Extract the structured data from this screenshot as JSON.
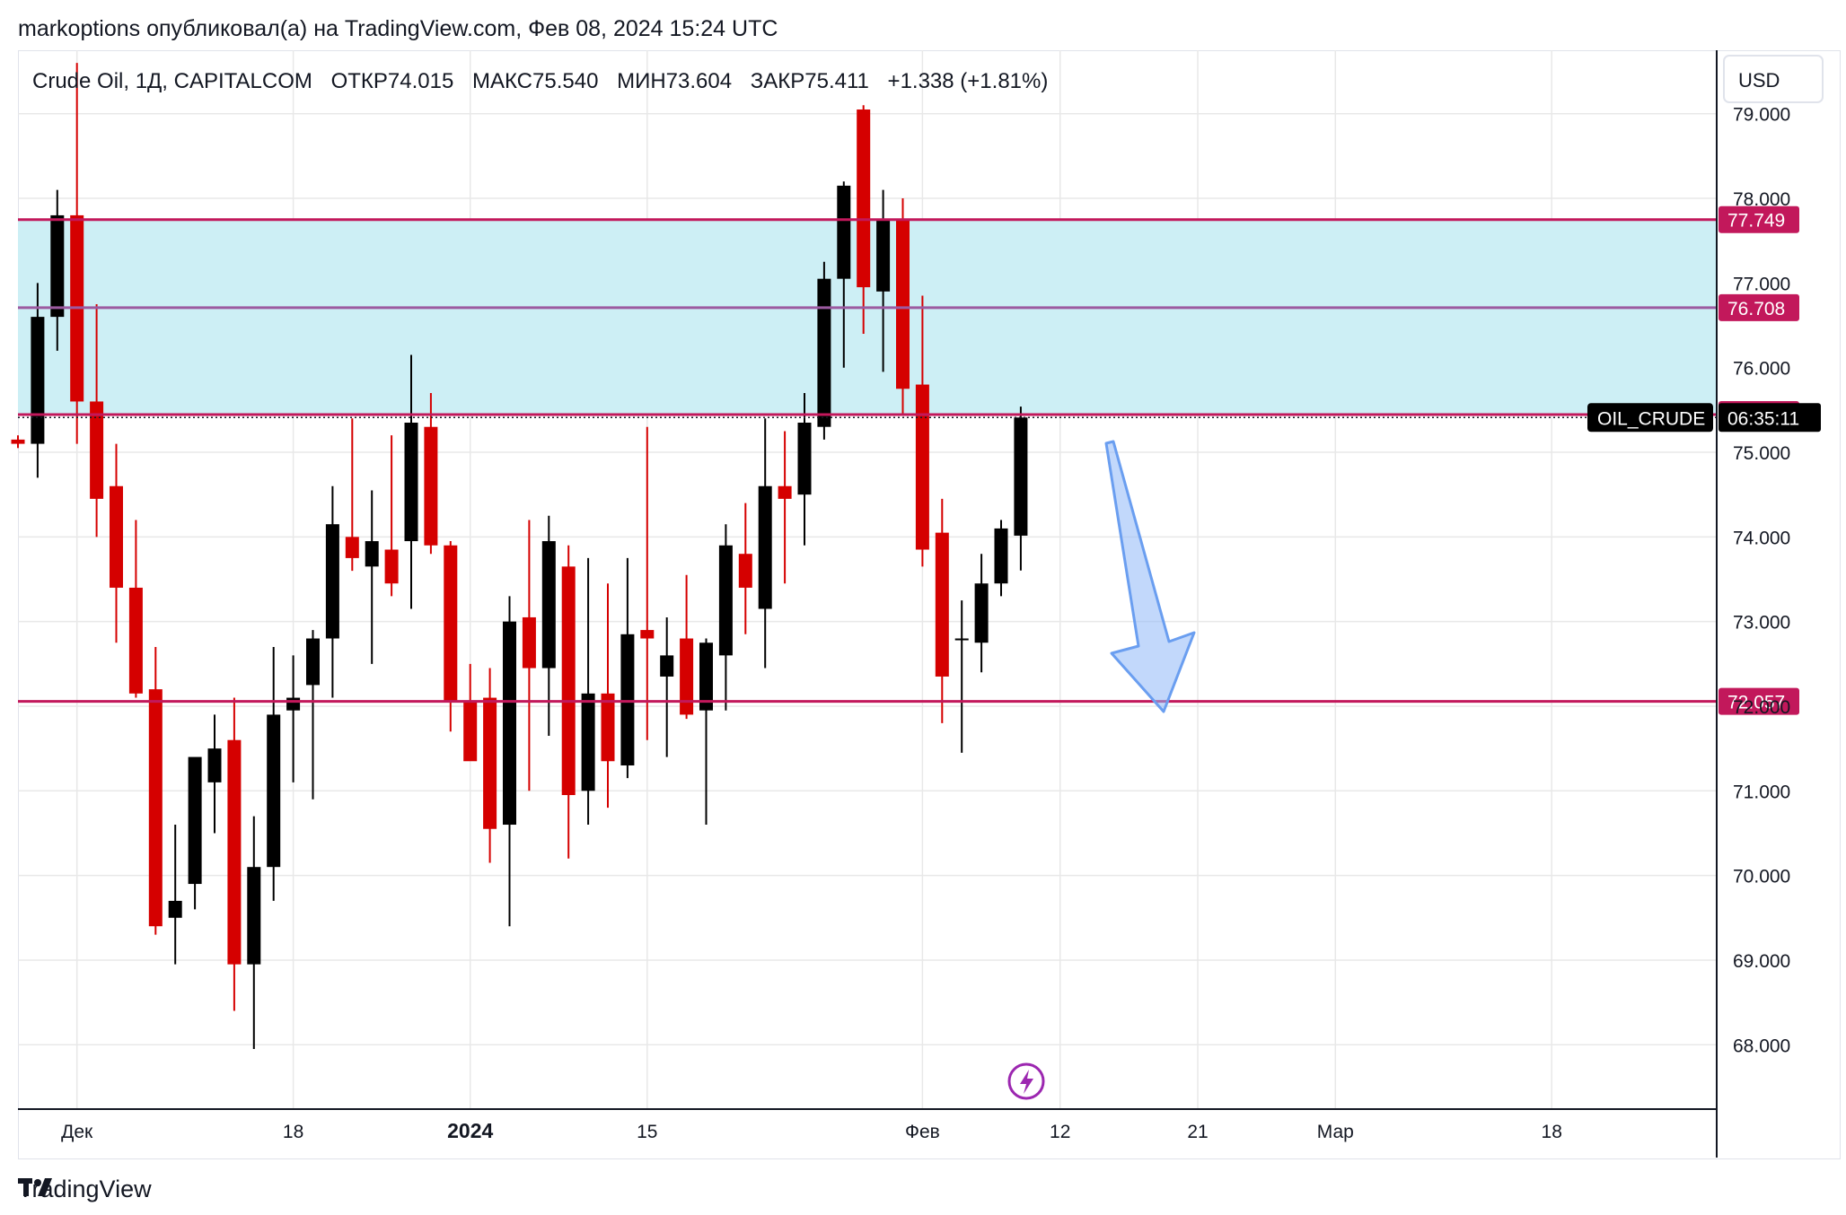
{
  "header": {
    "text": "markoptions опубликовал(а) на TradingView.com, Фев 08, 2024 15:24 UTC"
  },
  "legend": {
    "symbol": "Crude Oil, 1Д, CAPITALCOM",
    "open_label": "ОТКР",
    "open": "74.015",
    "high_label": "МАКС",
    "high": "75.540",
    "low_label": "МИН",
    "low": "73.604",
    "close_label": "ЗАКР",
    "close": "75.411",
    "change": "+1.338 (+1.81%)"
  },
  "currency_button": "USD",
  "footer": {
    "brand": "TradingView"
  },
  "colors": {
    "up": "#000000",
    "down": "#d50000",
    "zone": "#cdeff5",
    "level": "#c2185b",
    "mid_level": "#9c5aa0",
    "grid": "#e8e8e8",
    "arrow": "#90b8f8"
  },
  "chart_data": {
    "type": "candlestick",
    "ylim": [
      67.25,
      79.75
    ],
    "y_ticks": [
      "68.000",
      "69.000",
      "70.000",
      "71.000",
      "72.000",
      "73.000",
      "74.000",
      "75.000",
      "76.000",
      "77.000",
      "78.000",
      "79.000"
    ],
    "x_ticks": [
      {
        "label": "Дек",
        "index": 3,
        "bold": false
      },
      {
        "label": "18",
        "index": 14,
        "bold": false
      },
      {
        "label": "2024",
        "index": 23,
        "bold": true
      },
      {
        "label": "15",
        "index": 32,
        "bold": false
      },
      {
        "label": "Фев",
        "index": 46,
        "bold": false
      },
      {
        "label": "12",
        "index": 53,
        "bold": false
      },
      {
        "label": "21",
        "index": 60,
        "bold": false
      },
      {
        "label": "Мар",
        "index": 67,
        "bold": false
      },
      {
        "label": "18",
        "index": 78,
        "bold": false
      }
    ],
    "candles": [
      {
        "o": 75.15,
        "h": 75.2,
        "l": 75.05,
        "c": 75.1
      },
      {
        "o": 75.1,
        "h": 77.0,
        "l": 74.7,
        "c": 76.6
      },
      {
        "o": 76.6,
        "h": 78.1,
        "l": 76.2,
        "c": 77.8
      },
      {
        "o": 77.8,
        "h": 79.6,
        "l": 75.1,
        "c": 75.6
      },
      {
        "o": 75.6,
        "h": 76.75,
        "l": 74.0,
        "c": 74.45
      },
      {
        "o": 74.6,
        "h": 75.1,
        "l": 72.75,
        "c": 73.4
      },
      {
        "o": 73.4,
        "h": 74.2,
        "l": 72.1,
        "c": 72.15
      },
      {
        "o": 72.2,
        "h": 72.7,
        "l": 69.3,
        "c": 69.4
      },
      {
        "o": 69.5,
        "h": 70.6,
        "l": 68.95,
        "c": 69.7
      },
      {
        "o": 69.9,
        "h": 71.3,
        "l": 69.6,
        "c": 71.4
      },
      {
        "o": 71.1,
        "h": 71.9,
        "l": 70.5,
        "c": 71.5
      },
      {
        "o": 71.6,
        "h": 72.1,
        "l": 68.4,
        "c": 68.95
      },
      {
        "o": 68.95,
        "h": 70.7,
        "l": 67.95,
        "c": 70.1
      },
      {
        "o": 70.1,
        "h": 72.7,
        "l": 69.7,
        "c": 71.9
      },
      {
        "o": 71.95,
        "h": 72.6,
        "l": 71.1,
        "c": 72.1
      },
      {
        "o": 72.25,
        "h": 72.9,
        "l": 70.9,
        "c": 72.8
      },
      {
        "o": 72.8,
        "h": 74.6,
        "l": 72.1,
        "c": 74.15
      },
      {
        "o": 74.0,
        "h": 75.4,
        "l": 73.6,
        "c": 73.75
      },
      {
        "o": 73.65,
        "h": 74.55,
        "l": 72.5,
        "c": 73.95
      },
      {
        "o": 73.85,
        "h": 75.2,
        "l": 73.3,
        "c": 73.45
      },
      {
        "o": 73.95,
        "h": 76.15,
        "l": 73.15,
        "c": 75.35
      },
      {
        "o": 75.3,
        "h": 75.7,
        "l": 73.8,
        "c": 73.9
      },
      {
        "o": 73.9,
        "h": 73.95,
        "l": 71.7,
        "c": 72.05
      },
      {
        "o": 72.05,
        "h": 72.5,
        "l": 71.4,
        "c": 71.35
      },
      {
        "o": 72.1,
        "h": 72.45,
        "l": 70.15,
        "c": 70.55
      },
      {
        "o": 70.6,
        "h": 73.3,
        "l": 69.4,
        "c": 73.0
      },
      {
        "o": 73.05,
        "h": 74.2,
        "l": 71.0,
        "c": 72.45
      },
      {
        "o": 72.45,
        "h": 74.25,
        "l": 71.65,
        "c": 73.95
      },
      {
        "o": 73.65,
        "h": 73.9,
        "l": 70.2,
        "c": 70.95
      },
      {
        "o": 71.0,
        "h": 73.75,
        "l": 70.6,
        "c": 72.15
      },
      {
        "o": 72.15,
        "h": 73.45,
        "l": 70.8,
        "c": 71.35
      },
      {
        "o": 71.3,
        "h": 73.75,
        "l": 71.15,
        "c": 72.85
      },
      {
        "o": 72.9,
        "h": 75.3,
        "l": 71.6,
        "c": 72.8
      },
      {
        "o": 72.35,
        "h": 73.05,
        "l": 71.4,
        "c": 72.6
      },
      {
        "o": 72.8,
        "h": 73.55,
        "l": 71.85,
        "c": 71.9
      },
      {
        "o": 71.95,
        "h": 72.8,
        "l": 70.6,
        "c": 72.75
      },
      {
        "o": 72.6,
        "h": 74.15,
        "l": 71.95,
        "c": 73.9
      },
      {
        "o": 73.8,
        "h": 74.4,
        "l": 72.85,
        "c": 73.4
      },
      {
        "o": 73.15,
        "h": 75.4,
        "l": 72.45,
        "c": 74.6
      },
      {
        "o": 74.6,
        "h": 75.25,
        "l": 73.45,
        "c": 74.45
      },
      {
        "o": 74.5,
        "h": 75.7,
        "l": 73.9,
        "c": 75.35
      },
      {
        "o": 75.3,
        "h": 77.25,
        "l": 75.15,
        "c": 77.05
      },
      {
        "o": 77.05,
        "h": 78.2,
        "l": 76.0,
        "c": 78.15
      },
      {
        "o": 79.05,
        "h": 79.1,
        "l": 76.4,
        "c": 76.95
      },
      {
        "o": 76.9,
        "h": 78.1,
        "l": 75.95,
        "c": 77.75
      },
      {
        "o": 77.75,
        "h": 78.0,
        "l": 75.45,
        "c": 75.75
      },
      {
        "o": 75.8,
        "h": 76.85,
        "l": 73.65,
        "c": 73.85
      },
      {
        "o": 74.05,
        "h": 74.45,
        "l": 71.8,
        "c": 72.35
      },
      {
        "o": 72.8,
        "h": 73.25,
        "l": 71.45,
        "c": 72.8
      },
      {
        "o": 72.75,
        "h": 73.8,
        "l": 72.4,
        "c": 73.45
      },
      {
        "o": 73.45,
        "h": 74.2,
        "l": 73.3,
        "c": 74.1
      },
      {
        "o": 74.015,
        "h": 75.54,
        "l": 73.604,
        "c": 75.411
      }
    ],
    "zone": {
      "top": 77.749,
      "bottom": 75.446
    },
    "levels": [
      {
        "label": "77.749",
        "value": 77.749,
        "style": "solid"
      },
      {
        "label": "76.708",
        "value": 76.708,
        "style": "mid"
      },
      {
        "label": "75.446",
        "value": 75.446,
        "style": "solid"
      },
      {
        "label": "72.057",
        "value": 72.057,
        "style": "solid"
      }
    ],
    "current_price": 75.411,
    "symbol_tag": "OIL_CRUDE",
    "countdown": "06:35:11"
  }
}
